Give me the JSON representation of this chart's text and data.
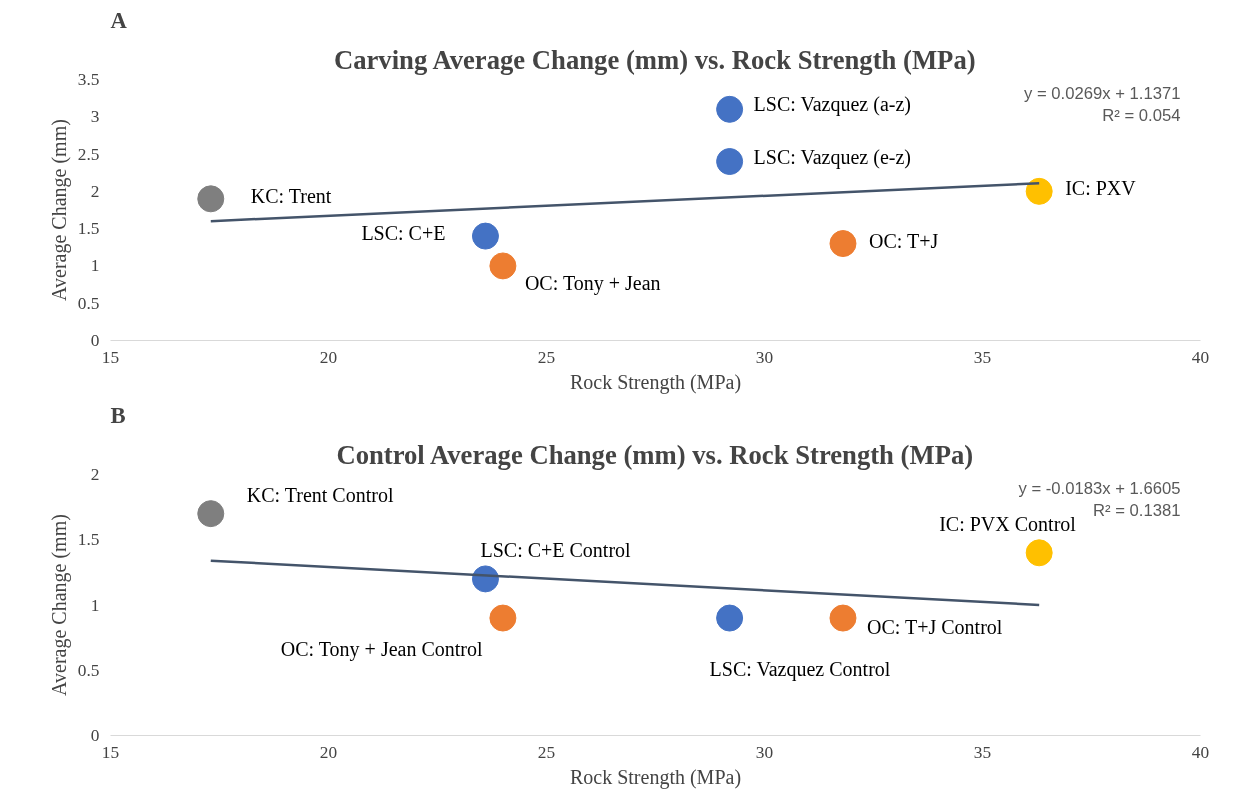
{
  "chart_data": [
    {
      "type": "scatter",
      "title": "Carving Average Change (mm) vs. Rock Strength (MPa)",
      "xlabel": "Rock Strength (MPa)",
      "ylabel": "Average Change (mm)",
      "xlim": [
        15,
        40
      ],
      "xticks": [
        15,
        20,
        25,
        30,
        35,
        40
      ],
      "ylim": [
        0,
        3.5
      ],
      "yticks": [
        0,
        0.5,
        1,
        1.5,
        2,
        2.5,
        3,
        3.5
      ],
      "grid": false,
      "marker": "circle",
      "series": [
        {
          "x": [
            17.3,
            23.6,
            24.0,
            29.2,
            29.2,
            31.8,
            36.3
          ],
          "values": [
            1.9,
            1.4,
            1.0,
            3.1,
            2.4,
            1.3,
            2.0
          ],
          "colors": [
            "#7f7f7f",
            "#4472c4",
            "#ed7d31",
            "#4472c4",
            "#4472c4",
            "#ed7d31",
            "#ffc000"
          ]
        },
        {
          "type": "line",
          "x": [
            17.3,
            36.3
          ],
          "values": [
            1.6,
            2.11
          ],
          "color": "#44546a",
          "marker": "none"
        }
      ],
      "annotations": [
        "A",
        "y = 0.0269x + 1.1371",
        "R² = 0.054",
        {
          "text": "KC: Trent",
          "x": 17.3,
          "y": 1.9
        },
        {
          "text": "LSC: C+E",
          "x": 23.6,
          "y": 1.4
        },
        {
          "text": "OC: Tony + Jean",
          "x": 24.0,
          "y": 1.0
        },
        {
          "text": "LSC: Vazquez (a-z)",
          "x": 29.2,
          "y": 3.1
        },
        {
          "text": "LSC: Vazquez (e-z)",
          "x": 29.2,
          "y": 2.4
        },
        {
          "text": "OC: T+J",
          "x": 31.8,
          "y": 1.3
        },
        {
          "text": "IC: PXV",
          "x": 36.3,
          "y": 2.0
        }
      ]
    },
    {
      "type": "scatter",
      "title": "Control Average Change (mm) vs. Rock Strength (MPa)",
      "xlabel": "Rock Strength (MPa)",
      "ylabel": "Average Change (mm)",
      "xlim": [
        15,
        40
      ],
      "xticks": [
        15,
        20,
        25,
        30,
        35,
        40
      ],
      "ylim": [
        0,
        2
      ],
      "yticks": [
        0,
        0.5,
        1,
        1.5,
        2
      ],
      "grid": false,
      "marker": "circle",
      "series": [
        {
          "x": [
            17.3,
            23.6,
            24.0,
            29.2,
            31.8,
            36.3
          ],
          "values": [
            1.7,
            1.2,
            0.9,
            0.9,
            0.9,
            1.4
          ],
          "colors": [
            "#7f7f7f",
            "#4472c4",
            "#ed7d31",
            "#4472c4",
            "#ed7d31",
            "#ffc000"
          ]
        },
        {
          "type": "line",
          "x": [
            17.3,
            36.3
          ],
          "values": [
            1.34,
            1.0
          ],
          "color": "#44546a",
          "marker": "none"
        }
      ],
      "annotations": [
        "B",
        "y = -0.0183x + 1.6605",
        "R² = 0.1381",
        {
          "text": "KC: Trent Control",
          "x": 17.3,
          "y": 1.7
        },
        {
          "text": "LSC: C+E Control",
          "x": 23.6,
          "y": 1.2
        },
        {
          "text": "OC: Tony + Jean Control",
          "x": 24.0,
          "y": 0.9
        },
        {
          "text": "LSC: Vazquez Control",
          "x": 29.2,
          "y": 0.9
        },
        {
          "text": "OC: T+J Control",
          "x": 31.8,
          "y": 0.9
        },
        {
          "text": "IC: PVX Control",
          "x": 36.3,
          "y": 1.4
        }
      ]
    }
  ]
}
